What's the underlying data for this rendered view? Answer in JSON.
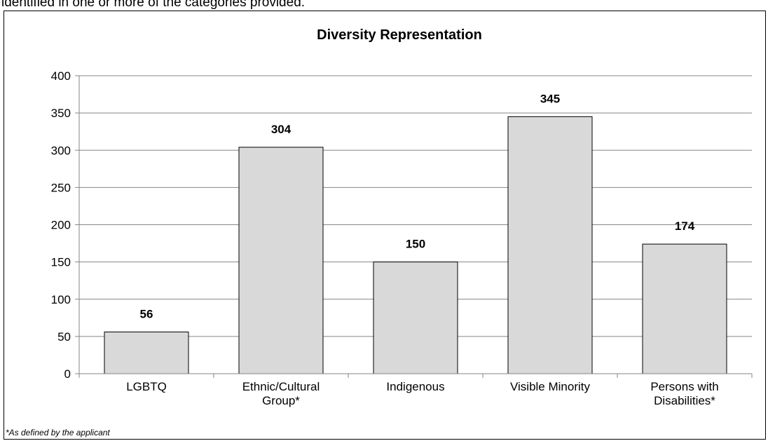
{
  "intro_text": "identified in one or more of the categories provided.",
  "footnote": "*As defined by the applicant",
  "chart_data": {
    "type": "bar",
    "title": "Diversity Representation",
    "xlabel": "",
    "ylabel": "",
    "categories": [
      [
        "LGBTQ"
      ],
      [
        "Ethnic/Cultural",
        "Group*"
      ],
      [
        "Indigenous"
      ],
      [
        "Visible Minority"
      ],
      [
        "Persons with",
        "Disabilities*"
      ]
    ],
    "values": [
      56,
      304,
      150,
      345,
      174
    ],
    "ylim": [
      0,
      400
    ],
    "yticks": [
      0,
      50,
      100,
      150,
      200,
      250,
      300,
      350,
      400
    ],
    "grid": true,
    "legend": "none",
    "bar_color": "#d9d9d9",
    "bar_edge_color": "#000000",
    "grid_color": "#868686"
  }
}
